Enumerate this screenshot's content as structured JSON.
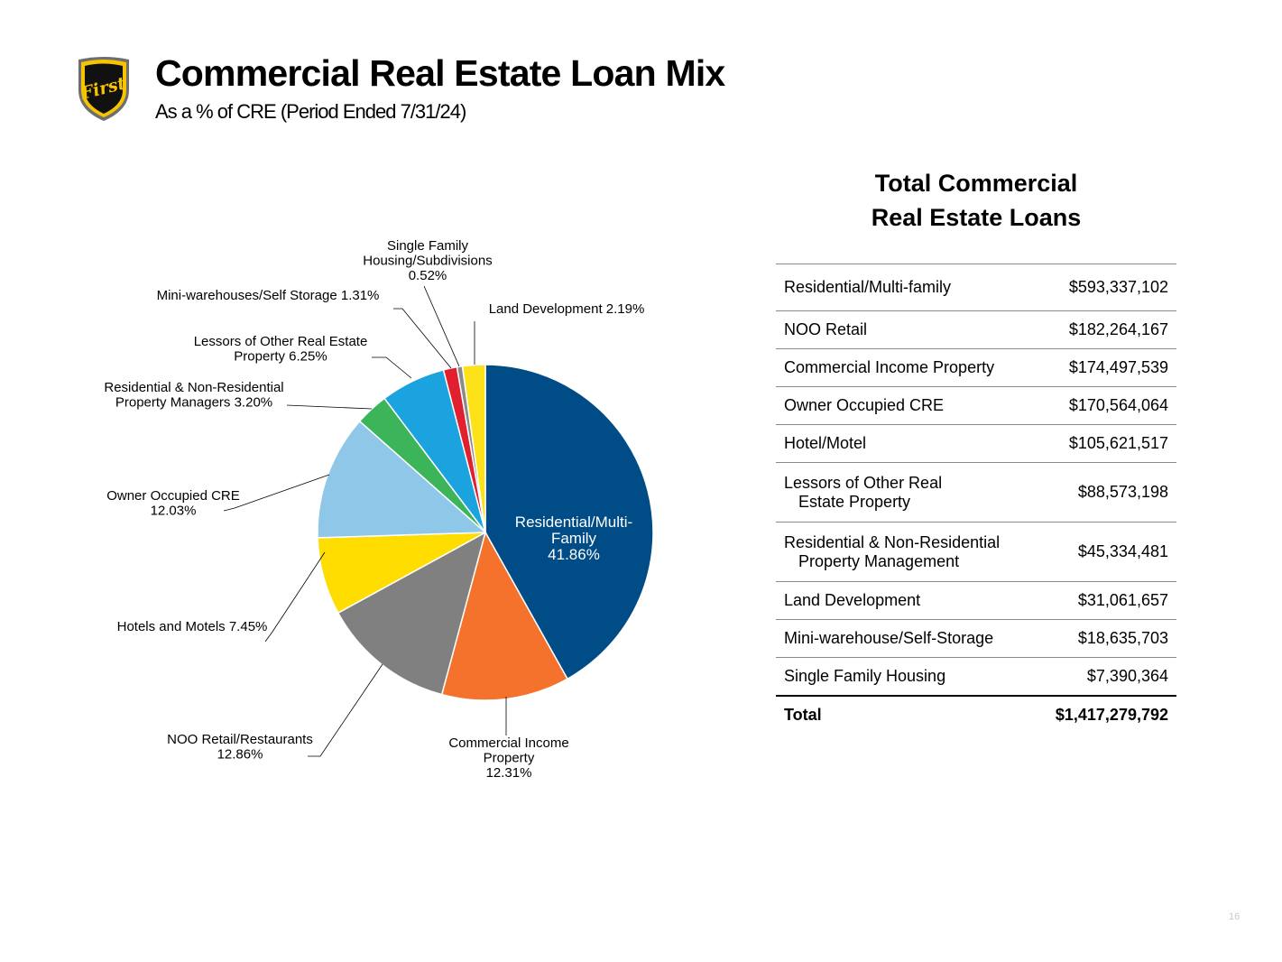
{
  "header": {
    "title": "Commercial Real Estate Loan Mix",
    "subtitle": "As a % of CRE (Period Ended 7/31/24)",
    "logo_text": "First"
  },
  "chart_data": {
    "type": "pie",
    "title": "",
    "start_angle_deg": 0,
    "direction": "clockwise",
    "slices": [
      {
        "label": "Residential/Multi-Family",
        "value": 41.86,
        "color": "#004c87",
        "label_lines": [
          "Residential/Multi-",
          "Family",
          "41.86%"
        ]
      },
      {
        "label": "Commercial Income Property",
        "value": 12.31,
        "color": "#f4722b",
        "label_lines": [
          "Commercial Income",
          "Property",
          "12.31%"
        ]
      },
      {
        "label": "NOO Retail/Restaurants",
        "value": 12.86,
        "color": "#808080",
        "label_lines": [
          "NOO Retail/Restaurants",
          "12.86%"
        ]
      },
      {
        "label": "Hotels and Motels",
        "value": 7.45,
        "color": "#ffdd00",
        "label_lines": [
          "Hotels and Motels 7.45%"
        ]
      },
      {
        "label": "Owner Occupied CRE",
        "value": 12.03,
        "color": "#8ec7e7",
        "label_lines": [
          "Owner Occupied CRE",
          "12.03%"
        ]
      },
      {
        "label": "Residential & Non-Residential Property Managers",
        "value": 3.2,
        "color": "#3cb55a",
        "label_lines": [
          "Residential & Non-Residential",
          "Property Managers 3.20%"
        ]
      },
      {
        "label": "Lessors of Other Real Estate Property",
        "value": 6.25,
        "color": "#1aa3df",
        "label_lines": [
          "Lessors of Other Real Estate",
          "Property 6.25%"
        ]
      },
      {
        "label": "Mini-warehouses/Self Storage",
        "value": 1.31,
        "color": "#e0202e",
        "label_lines": [
          "Mini-warehouses/Self Storage 1.31%"
        ]
      },
      {
        "label": "Single Family Housing/Subdivisions",
        "value": 0.52,
        "color": "#8a8a8a",
        "label_lines": [
          "Single Family",
          "Housing/Subdivisions",
          "0.52%"
        ]
      },
      {
        "label": "Land Development",
        "value": 2.19,
        "color": "#fde21a",
        "label_lines": [
          "Land Development 2.19%"
        ]
      }
    ]
  },
  "loans_table": {
    "heading_line1": "Total Commercial",
    "heading_line2": "Real Estate Loans",
    "rows": [
      {
        "label": [
          "Residential/Multi-family"
        ],
        "amount": "$593,337,102"
      },
      {
        "label": [
          "NOO Retail"
        ],
        "amount": "$182,264,167"
      },
      {
        "label": [
          "Commercial Income Property"
        ],
        "amount": "$174,497,539"
      },
      {
        "label": [
          "Owner Occupied CRE"
        ],
        "amount": "$170,564,064"
      },
      {
        "label": [
          "Hotel/Motel"
        ],
        "amount": "$105,621,517"
      },
      {
        "label": [
          "Lessors of Other Real",
          "Estate Property"
        ],
        "amount": "$88,573,198"
      },
      {
        "label": [
          "Residential & Non-Residential",
          "Property Management"
        ],
        "amount": "$45,334,481"
      },
      {
        "label": [
          "Land Development"
        ],
        "amount": "$31,061,657"
      },
      {
        "label": [
          "Mini-warehouse/Self-Storage"
        ],
        "amount": "$18,635,703"
      },
      {
        "label": [
          "Single Family Housing"
        ],
        "amount": "$7,390,364"
      }
    ],
    "total_label": "Total",
    "total_amount": "$1,417,279,792"
  },
  "page_number": "16"
}
